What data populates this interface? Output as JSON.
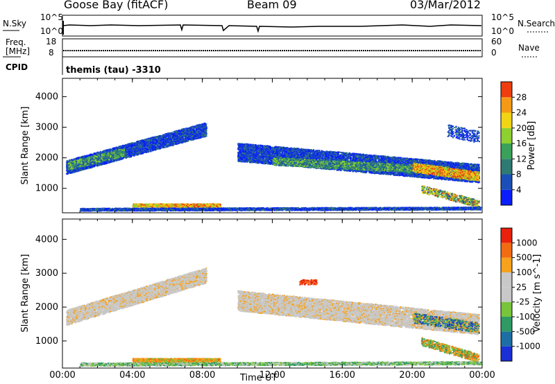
{
  "header": {
    "station": "Goose Bay (fitACF)",
    "beam": "Beam 09",
    "date": "03/Mar/2012"
  },
  "noise": {
    "left_label": "N.Sky",
    "right_label": "N.Search",
    "left_ticks": [
      "10^5",
      "10^0"
    ],
    "right_ticks": [
      "10^5",
      "10^0"
    ]
  },
  "freq": {
    "left_label_1": "Freq.",
    "left_label_2": "[MHz]",
    "right_label": "Nave",
    "left_ticks": [
      "18",
      "8"
    ],
    "right_ticks": [
      "60",
      "0"
    ]
  },
  "cpid": {
    "label": "CPID",
    "value": "themis (tau) -3310"
  },
  "chart_data": [
    {
      "type": "heatmap",
      "name": "power",
      "xlabel": "Time UT",
      "ylabel": "Slant Range [km]",
      "x_ticks": [
        "00:00",
        "04:00",
        "08:00",
        "12:00",
        "16:00",
        "20:00",
        "00:00"
      ],
      "y_ticks": [
        1000,
        2000,
        3000,
        4000
      ],
      "ylim": [
        200,
        4600
      ],
      "colorbar": {
        "label": "Power [dB]",
        "ticks": [
          "4",
          "8",
          "12",
          "16",
          "20",
          "24",
          "28"
        ],
        "colors": [
          "#0a1dff",
          "#1b4fb7",
          "#2f7a72",
          "#3aa15a",
          "#8ed031",
          "#f1d414",
          "#f59a16",
          "#ee3d0f"
        ]
      }
    },
    {
      "type": "heatmap",
      "name": "velocity",
      "xlabel": "Time UT",
      "ylabel": "Slant Range [km]",
      "x_ticks": [
        "00:00",
        "04:00",
        "08:00",
        "12:00",
        "16:00",
        "20:00",
        "00:00"
      ],
      "y_ticks": [
        1000,
        2000,
        3000,
        4000
      ],
      "ylim": [
        200,
        4600
      ],
      "colorbar": {
        "label": "Velocity [m s^-1]",
        "ticks": [
          "1000",
          "500",
          "100",
          "25",
          "-25",
          "-100",
          "-500",
          "-1000"
        ],
        "colors": [
          "#1a2fd6",
          "#1d6ea5",
          "#2f9a64",
          "#78c43b",
          "#c8c8c8",
          "#c8c8c8",
          "#f6a21c",
          "#f26a12",
          "#e8200c"
        ]
      }
    }
  ]
}
